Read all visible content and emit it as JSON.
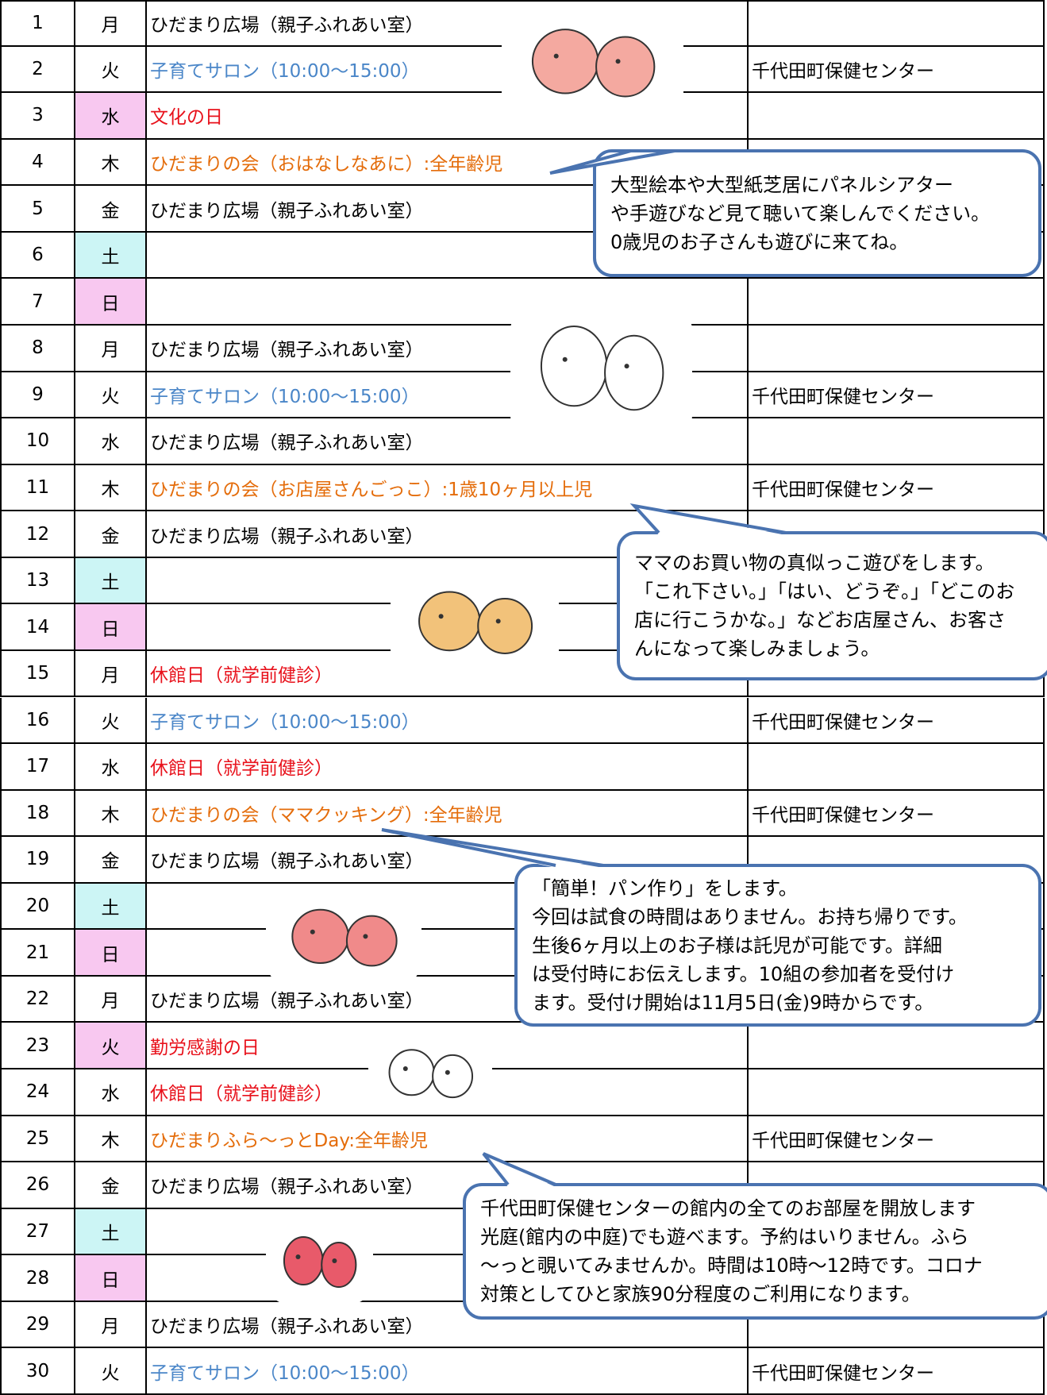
{
  "table": {
    "rows": [
      {
        "day": "1",
        "weekday": "月",
        "event": "ひだまり広場（親子ふれあい室）"
      },
      {
        "day": "2",
        "weekday": "火",
        "event": "子育てサロン（10:00〜15:00）",
        "event_color": "#4a86c8",
        "location": "千代田町保健センター"
      },
      {
        "day": "3",
        "weekday": "水",
        "weekday_color": "#f8c8f0",
        "event": "文化の日",
        "event_color": "#e8111b"
      },
      {
        "day": "4",
        "weekday": "木",
        "event": "ひだまりの会（おはなしなあに）:全年齢児",
        "event_color": "#e46c0a"
      },
      {
        "day": "5",
        "weekday": "金",
        "event": "ひだまり広場（親子ふれあい室）"
      },
      {
        "day": "6",
        "weekday": "土",
        "weekday_color": "#ccf5f5"
      },
      {
        "day": "7",
        "weekday": "日",
        "weekday_color": "#f8c8f0"
      },
      {
        "day": "8",
        "weekday": "月",
        "event": "ひだまり広場（親子ふれあい室）"
      },
      {
        "day": "9",
        "weekday": "火",
        "event": "子育てサロン（10:00〜15:00）",
        "event_color": "#4a86c8",
        "location": "千代田町保健センター"
      },
      {
        "day": "10",
        "weekday": "水",
        "event": "ひだまり広場（親子ふれあい室）"
      },
      {
        "day": "11",
        "weekday": "木",
        "event": "ひだまりの会（お店屋さんごっこ）:1歳10ヶ月以上児",
        "event_color": "#e46c0a",
        "location": "千代田町保健センター"
      },
      {
        "day": "12",
        "weekday": "金",
        "event": "ひだまり広場（親子ふれあい室）"
      },
      {
        "day": "13",
        "weekday": "土",
        "weekday_color": "#ccf5f5"
      },
      {
        "day": "14",
        "weekday": "日",
        "weekday_color": "#f8c8f0"
      },
      {
        "day": "15",
        "weekday": "月",
        "event": "休館日（就学前健診）",
        "event_color": "#e8111b"
      },
      {
        "day": "16",
        "weekday": "火",
        "event": "子育てサロン（10:00〜15:00）",
        "event_color": "#4a86c8",
        "location": "千代田町保健センター"
      },
      {
        "day": "17",
        "weekday": "水",
        "event": "休館日（就学前健診）",
        "event_color": "#e8111b"
      },
      {
        "day": "18",
        "weekday": "木",
        "event": "ひだまりの会（ママクッキング）:全年齢児",
        "event_color": "#e46c0a",
        "location": "千代田町保健センター"
      },
      {
        "day": "19",
        "weekday": "金",
        "event": "ひだまり広場（親子ふれあい室）"
      },
      {
        "day": "20",
        "weekday": "土",
        "weekday_color": "#ccf5f5"
      },
      {
        "day": "21",
        "weekday": "日",
        "weekday_color": "#f8c8f0"
      },
      {
        "day": "22",
        "weekday": "月",
        "event": "ひだまり広場（親子ふれあい室）"
      },
      {
        "day": "23",
        "weekday": "火",
        "weekday_color": "#f8c8f0",
        "event": "勤労感謝の日",
        "event_color": "#e8111b"
      },
      {
        "day": "24",
        "weekday": "水",
        "event": "休館日（就学前健診）",
        "event_color": "#e8111b"
      },
      {
        "day": "25",
        "weekday": "木",
        "event": "ひだまりふら〜っとDay:全年齢児",
        "event_color": "#e46c0a",
        "location": "千代田町保健センター"
      },
      {
        "day": "26",
        "weekday": "金",
        "event": "ひだまり広場（親子ふれあい室）"
      },
      {
        "day": "27",
        "weekday": "土",
        "weekday_color": "#ccf5f5"
      },
      {
        "day": "28",
        "weekday": "日",
        "weekday_color": "#f8c8f0"
      },
      {
        "day": "29",
        "weekday": "月",
        "event": "ひだまり広場（親子ふれあい室）"
      },
      {
        "day": "30",
        "weekday": "火",
        "event": "子育てサロン（10:00〜15:00）",
        "event_color": "#4a86c8",
        "location": "千代田町保健センター"
      }
    ]
  },
  "callouts": [
    {
      "lines": [
        "大型絵本や大型紙芝居にパネルシアター",
        "や手遊びなど見て聴いて楽しんでください。",
        "0歳児のお子さんも遊びに来てね。"
      ]
    },
    {
      "lines": [
        "ママのお買い物の真似っこ遊びをします。",
        "「これ下さい。」「はい、どうぞ。」「どこのお",
        "店に行こうかな。」などお店屋さん、お客さ",
        "んになって楽しみましょう。"
      ]
    },
    {
      "lines": [
        "「簡単！パン作り」をします。",
        "今回は試食の時間はありません。お持ち帰りです。",
        "生後6ヶ月以上のお子様は託児が可能です。詳細",
        "は受付時にお伝えします。10組の参加者を受付け",
        "ます。受付け開始は11月5日(金)9時からです。"
      ]
    },
    {
      "lines": [
        "千代田町保健センターの館内の全てのお部屋を開放します",
        "光庭(館内の中庭)でも遊べます。予約はいりません。ふら",
        "〜っと覗いてみませんか。時間は10時〜12時です。コロナ",
        "対策としてひと家族90分程度のご利用になります。"
      ]
    }
  ]
}
